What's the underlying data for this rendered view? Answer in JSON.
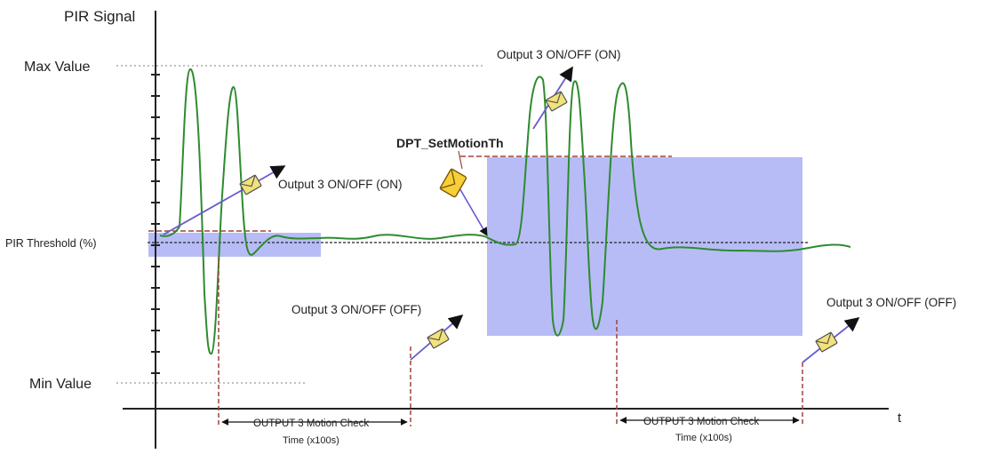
{
  "labels": {
    "y_axis_title": "PIR Signal",
    "x_axis_label": "t",
    "max_value": "Max Value",
    "min_value": "Min Value",
    "threshold": "PIR Threshold  (%)",
    "set_motion_th": "DPT_SetMotionTh"
  },
  "events": {
    "output_on_1": "Output 3 ON/OFF (ON)",
    "output_on_2": "Output 3 ON/OFF (ON)",
    "output_off_1": "Output 3 ON/OFF (OFF)",
    "output_off_2": "Output 3 ON/OFF (OFF)"
  },
  "intervals": {
    "check_1_line1": "OUTPUT 3 Motion Check",
    "check_1_line2": "Time (x100s)",
    "check_2_line1": "OUTPUT 3 Motion Check",
    "check_2_line2": "Time (x100s)"
  },
  "colors": {
    "signal": "#2e8b2e",
    "window": "#aab0f4",
    "dashed_red": "#a0413a",
    "arrow_line": "#6a5acd",
    "envelope": "#f2e27a",
    "axis": "#222222"
  }
}
